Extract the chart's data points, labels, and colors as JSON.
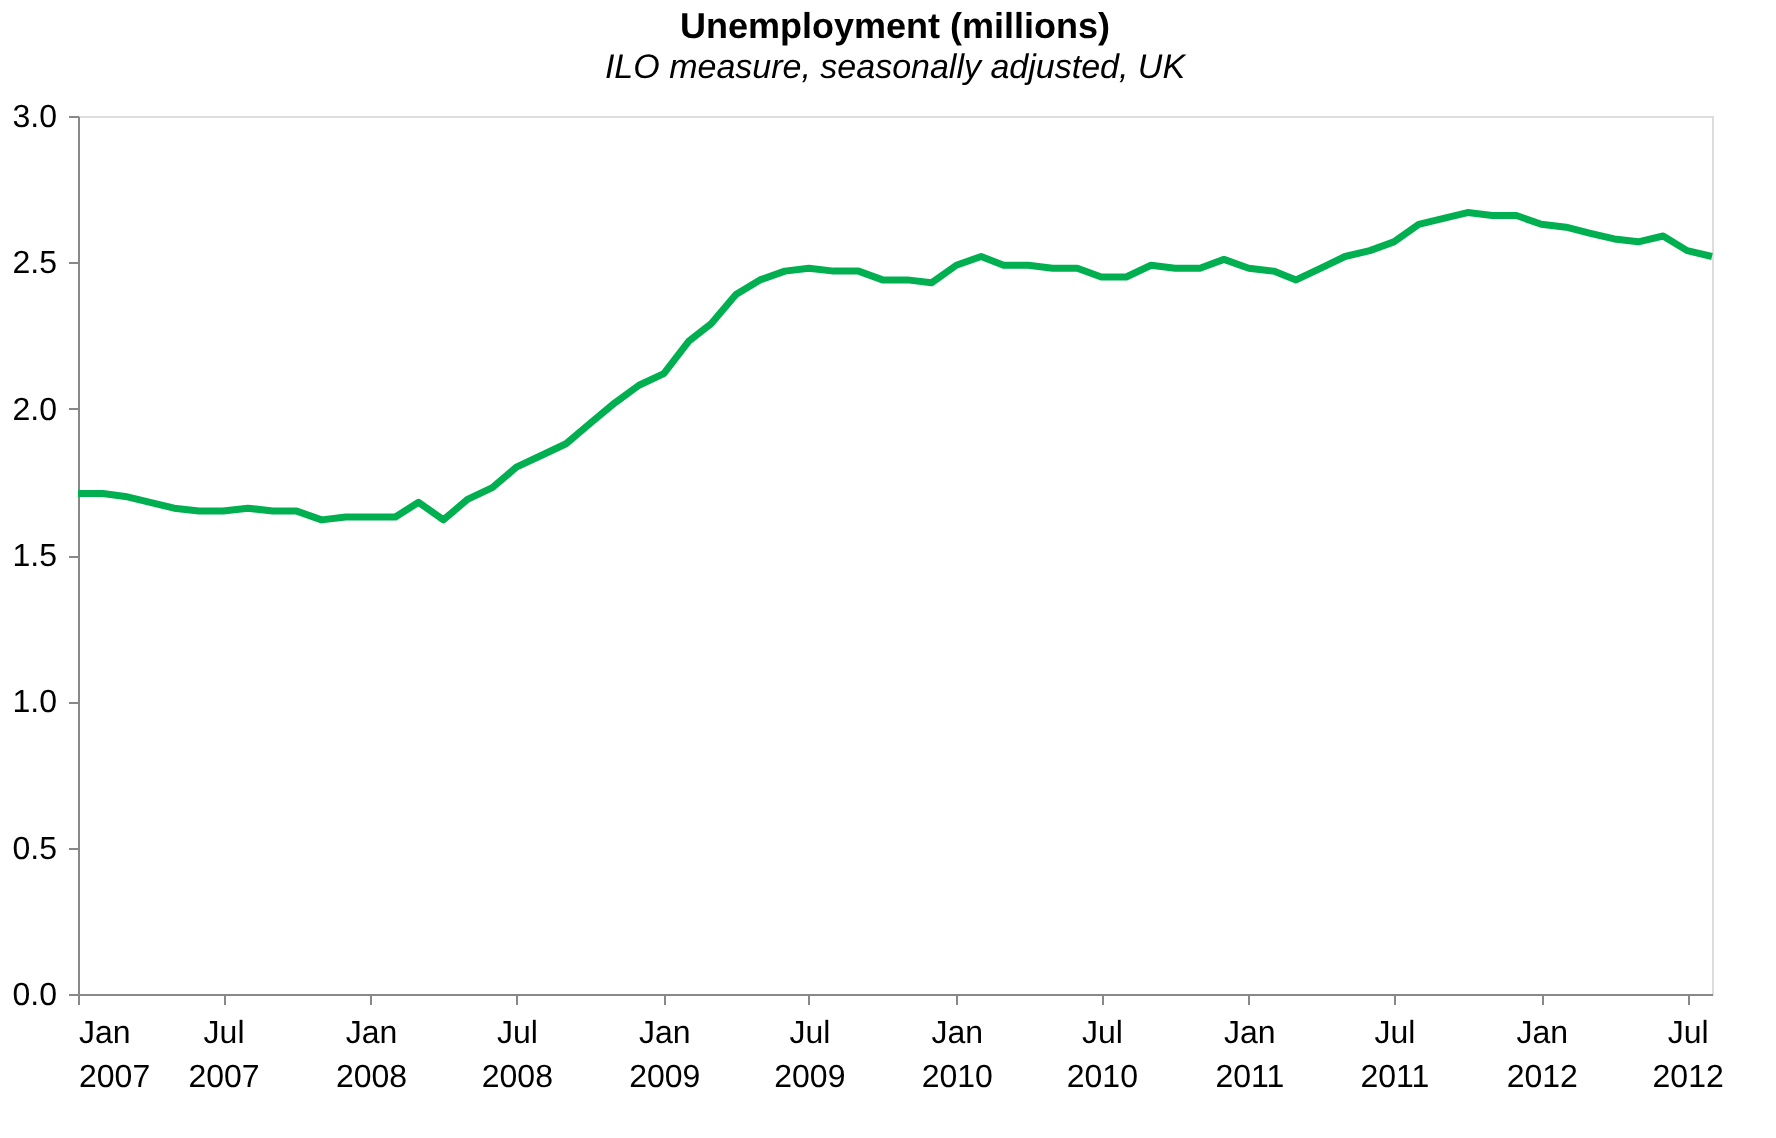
{
  "chart_data": {
    "type": "line",
    "title": "Unemployment (millions)",
    "subtitle": "ILO measure, seasonally adjusted, UK",
    "x": [
      "2007-01",
      "2007-02",
      "2007-03",
      "2007-04",
      "2007-05",
      "2007-06",
      "2007-07",
      "2007-08",
      "2007-09",
      "2007-10",
      "2007-11",
      "2007-12",
      "2008-01",
      "2008-02",
      "2008-03",
      "2008-04",
      "2008-05",
      "2008-06",
      "2008-07",
      "2008-08",
      "2008-09",
      "2008-10",
      "2008-11",
      "2008-12",
      "2009-01",
      "2009-02",
      "2009-03",
      "2009-04",
      "2009-05",
      "2009-06",
      "2009-07",
      "2009-08",
      "2009-09",
      "2009-10",
      "2009-11",
      "2009-12",
      "2010-01",
      "2010-02",
      "2010-03",
      "2010-04",
      "2010-05",
      "2010-06",
      "2010-07",
      "2010-08",
      "2010-09",
      "2010-10",
      "2010-11",
      "2010-12",
      "2011-01",
      "2011-02",
      "2011-03",
      "2011-04",
      "2011-05",
      "2011-06",
      "2011-07",
      "2011-08",
      "2011-09",
      "2011-10",
      "2011-11",
      "2011-12",
      "2012-01",
      "2012-02",
      "2012-03",
      "2012-04",
      "2012-05",
      "2012-06",
      "2012-07",
      "2012-08"
    ],
    "series": [
      {
        "color": "#00b050",
        "values": [
          1.71,
          1.71,
          1.7,
          1.68,
          1.66,
          1.65,
          1.65,
          1.66,
          1.65,
          1.65,
          1.62,
          1.63,
          1.63,
          1.63,
          1.68,
          1.62,
          1.69,
          1.73,
          1.8,
          1.84,
          1.88,
          1.95,
          2.02,
          2.08,
          2.12,
          2.23,
          2.29,
          2.39,
          2.44,
          2.47,
          2.48,
          2.47,
          2.47,
          2.44,
          2.44,
          2.43,
          2.49,
          2.52,
          2.49,
          2.49,
          2.48,
          2.48,
          2.45,
          2.45,
          2.49,
          2.48,
          2.48,
          2.51,
          2.48,
          2.47,
          2.44,
          2.48,
          2.52,
          2.54,
          2.57,
          2.63,
          2.65,
          2.67,
          2.66,
          2.66,
          2.63,
          2.62,
          2.6,
          2.58,
          2.57,
          2.59,
          2.54,
          2.52
        ]
      }
    ],
    "xlim": [
      "2007-01",
      "2012-08"
    ],
    "xticks": [
      {
        "value": "2007-01",
        "label": "Jan 2007"
      },
      {
        "value": "2007-07",
        "label": "Jul 2007"
      },
      {
        "value": "2008-01",
        "label": "Jan 2008"
      },
      {
        "value": "2008-07",
        "label": "Jul 2008"
      },
      {
        "value": "2009-01",
        "label": "Jan 2009"
      },
      {
        "value": "2009-07",
        "label": "Jul 2009"
      },
      {
        "value": "2010-01",
        "label": "Jan 2010"
      },
      {
        "value": "2010-07",
        "label": "Jul 2010"
      },
      {
        "value": "2011-01",
        "label": "Jan 2011"
      },
      {
        "value": "2011-07",
        "label": "Jul 2011"
      },
      {
        "value": "2012-01",
        "label": "Jan 2012"
      },
      {
        "value": "2012-07",
        "label": "Jul 2012"
      }
    ],
    "ylim": [
      0,
      3
    ],
    "yticks": [
      {
        "value": 0,
        "label": "0.0"
      },
      {
        "value": 0.5,
        "label": "0.5"
      },
      {
        "value": 1,
        "label": "1.0"
      },
      {
        "value": 1.5,
        "label": "1.5"
      },
      {
        "value": 2,
        "label": "2.0"
      },
      {
        "value": 2.5,
        "label": "2.5"
      },
      {
        "value": 3,
        "label": "3.0"
      }
    ],
    "grid": false,
    "legend": false,
    "marker": "none",
    "line_style": "solid"
  }
}
